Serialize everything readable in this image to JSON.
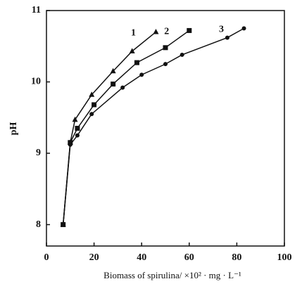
{
  "chart_data": {
    "type": "line",
    "x_label": "Biomass of spirulina/ ×10² · mg · L⁻¹",
    "y_label": "pH",
    "xlim": [
      0,
      100
    ],
    "xticks": [
      0,
      20,
      40,
      60,
      80,
      100
    ],
    "ylim": [
      7.7,
      11
    ],
    "yticks": [
      8,
      9,
      10,
      11
    ],
    "series": [
      {
        "name": "1",
        "color": "#111111",
        "marker": "triangle",
        "x": [
          7,
          10,
          12,
          19,
          28,
          36,
          46
        ],
        "values": [
          8.0,
          9.15,
          9.47,
          9.82,
          10.15,
          10.43,
          10.7
        ]
      },
      {
        "name": "2",
        "color": "#111111",
        "marker": "square",
        "x": [
          7,
          10,
          13,
          20,
          28,
          38,
          50,
          60
        ],
        "values": [
          8.0,
          9.15,
          9.35,
          9.68,
          9.97,
          10.27,
          10.48,
          10.72
        ]
      },
      {
        "name": "3",
        "color": "#111111",
        "marker": "circle",
        "x": [
          7,
          10,
          13,
          19,
          32,
          40,
          50,
          57,
          76,
          83
        ],
        "values": [
          8.0,
          9.12,
          9.25,
          9.55,
          9.92,
          10.1,
          10.25,
          10.38,
          10.62,
          10.75
        ]
      }
    ]
  }
}
